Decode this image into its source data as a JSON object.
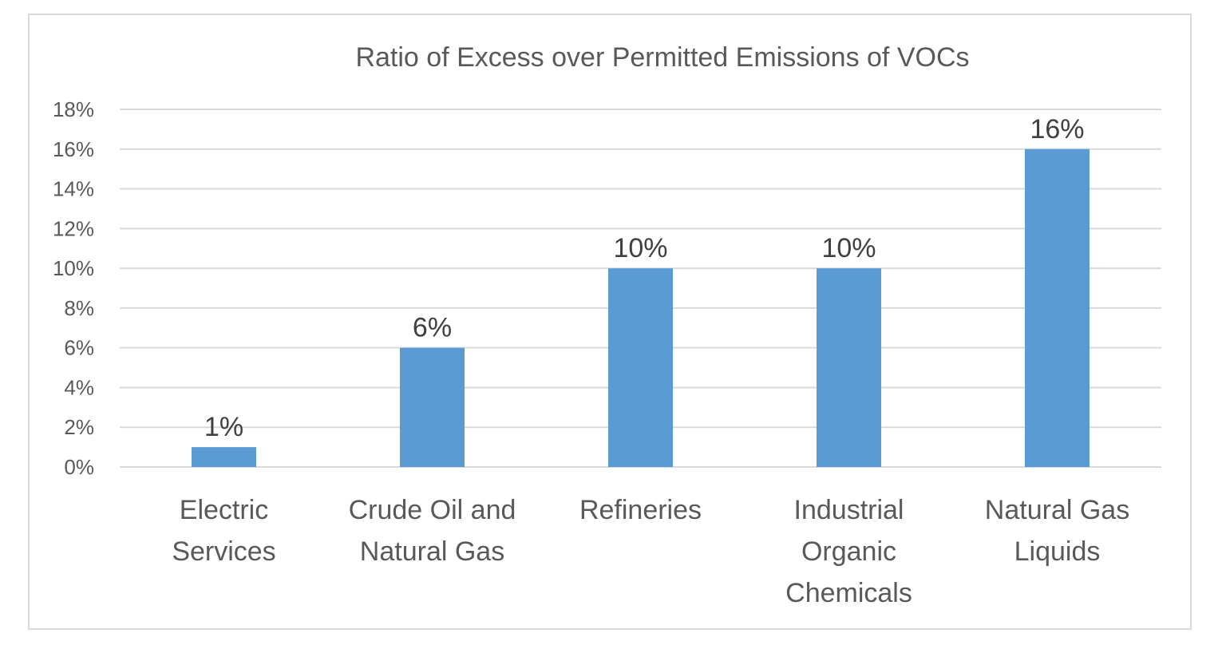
{
  "chart_data": {
    "type": "bar",
    "title": "Ratio of Excess over Permitted Emissions of VOCs",
    "xlabel": "",
    "ylabel": "",
    "categories": [
      [
        "Electric",
        "Services"
      ],
      [
        "Crude Oil and",
        "Natural Gas"
      ],
      [
        "Refineries"
      ],
      [
        "Industrial",
        "Organic",
        "Chemicals"
      ],
      [
        "Natural Gas",
        "Liquids"
      ]
    ],
    "values": [
      1,
      6,
      10,
      10,
      16
    ],
    "data_labels": [
      "1%",
      "6%",
      "10%",
      "10%",
      "16%"
    ],
    "ylim": [
      0,
      18
    ],
    "yticks": [
      0,
      2,
      4,
      6,
      8,
      10,
      12,
      14,
      16,
      18
    ],
    "ytick_labels": [
      "0%",
      "2%",
      "4%",
      "6%",
      "8%",
      "10%",
      "12%",
      "14%",
      "16%",
      "18%"
    ],
    "grid": true,
    "legend": "none",
    "colors": {
      "bar": "#5b9bd5",
      "grid": "#d9d9d9"
    }
  }
}
